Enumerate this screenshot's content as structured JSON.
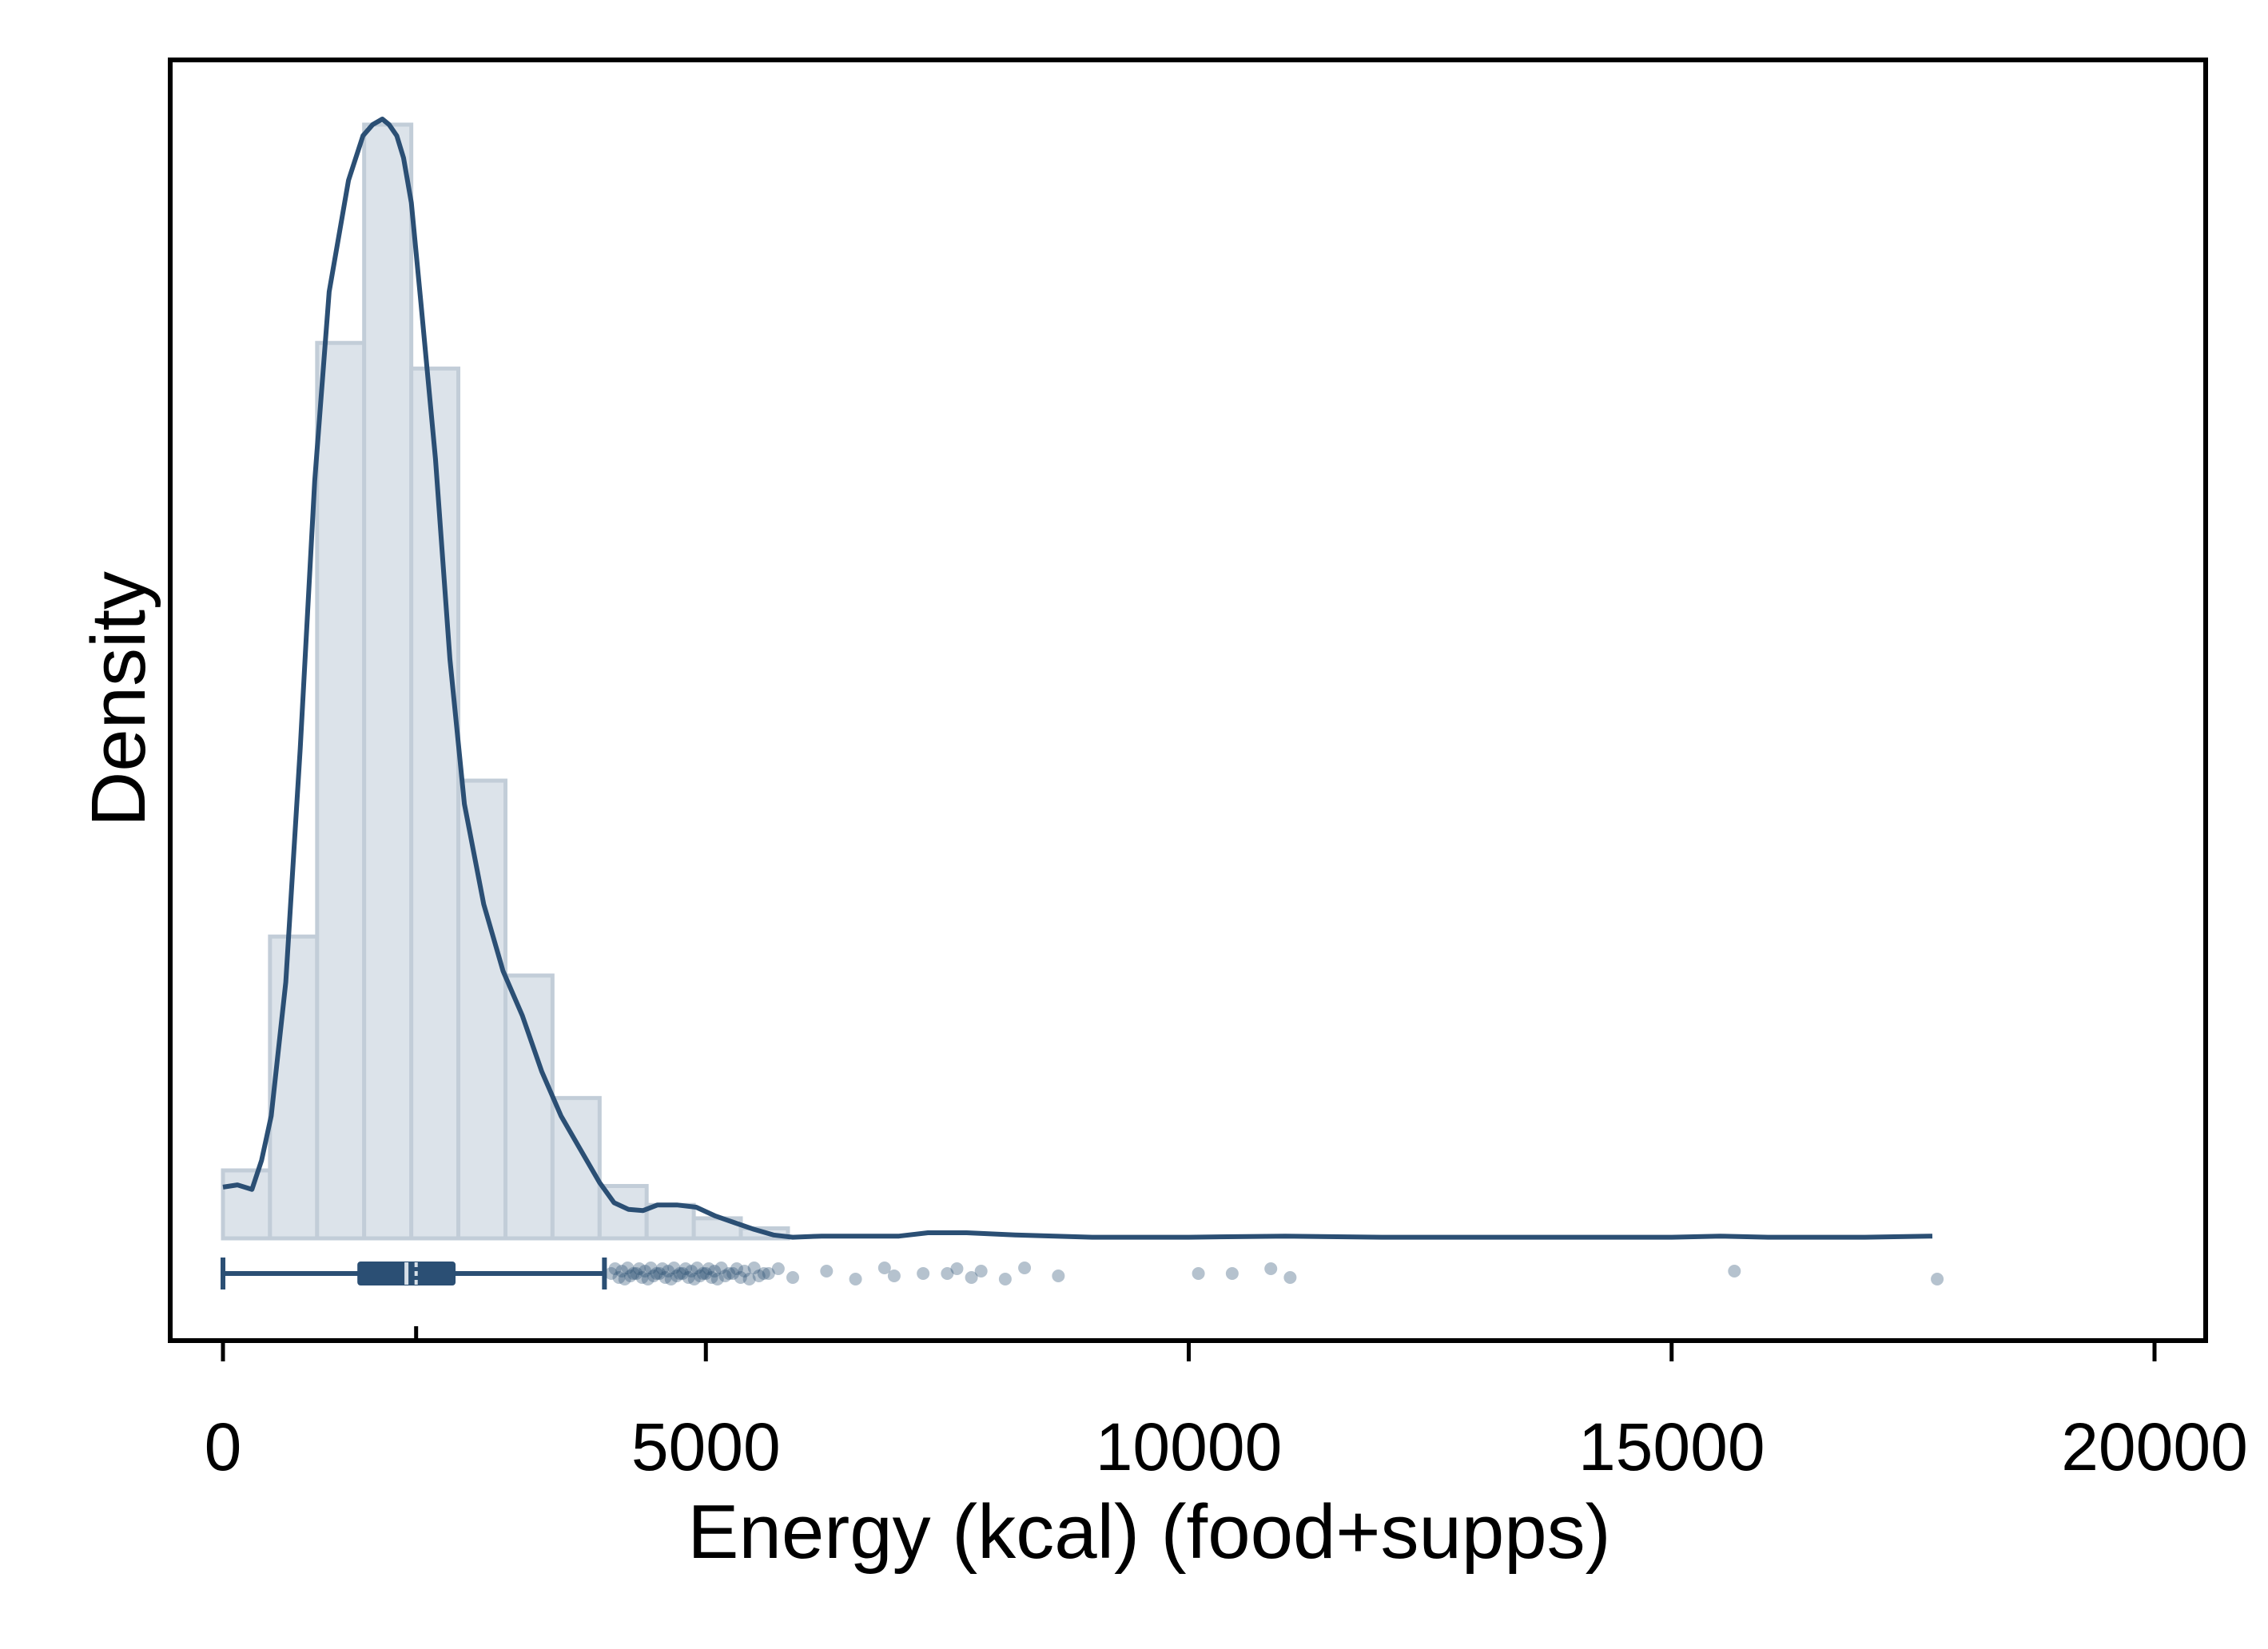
{
  "chart_data": {
    "type": "histogram",
    "title": "",
    "xlabel": "Energy (kcal) (food+supps)",
    "ylabel": "Density",
    "xlim": [
      -550,
      20550
    ],
    "x_ticks": [
      0,
      5000,
      10000,
      15000,
      20000
    ],
    "x_tick_labels": [
      "0",
      "5000",
      "10000",
      "15000",
      "20000"
    ],
    "y_ticks_shown": false,
    "grid": false,
    "colors": {
      "bar_fill": "#dce3ea",
      "bar_edge": "#c2cdd8",
      "line": "#2b4f74",
      "points": "#2b4f74"
    },
    "histogram": {
      "bin_width": 487,
      "bins": [
        {
          "x0": 0,
          "x1": 487,
          "rel_height": 0.061
        },
        {
          "x0": 487,
          "x1": 975,
          "rel_height": 0.271
        },
        {
          "x0": 975,
          "x1": 1462,
          "rel_height": 0.804
        },
        {
          "x0": 1462,
          "x1": 1950,
          "rel_height": 1.0
        },
        {
          "x0": 1950,
          "x1": 2437,
          "rel_height": 0.781
        },
        {
          "x0": 2437,
          "x1": 2925,
          "rel_height": 0.411
        },
        {
          "x0": 2925,
          "x1": 3412,
          "rel_height": 0.236
        },
        {
          "x0": 3412,
          "x1": 3900,
          "rel_height": 0.126
        },
        {
          "x0": 3900,
          "x1": 4387,
          "rel_height": 0.047
        },
        {
          "x0": 4387,
          "x1": 4875,
          "rel_height": 0.03
        },
        {
          "x0": 4875,
          "x1": 5362,
          "rel_height": 0.018
        },
        {
          "x0": 5362,
          "x1": 5850,
          "rel_height": 0.009
        }
      ]
    },
    "density_curve": {
      "x": [
        0,
        150,
        300,
        400,
        500,
        650,
        800,
        950,
        1100,
        1300,
        1450,
        1550,
        1650,
        1720,
        1800,
        1870,
        1950,
        2050,
        2200,
        2350,
        2500,
        2700,
        2900,
        3100,
        3300,
        3500,
        3700,
        3900,
        4050,
        4200,
        4350,
        4500,
        4700,
        4900,
        5100,
        5300,
        5500,
        5700,
        5900,
        6200,
        6600,
        7000,
        7300,
        7700,
        8200,
        9000,
        10000,
        11000,
        12000,
        13000,
        14000,
        15000,
        15500,
        16000,
        17000,
        17700
      ],
      "rel_y": [
        0.046,
        0.048,
        0.044,
        0.07,
        0.11,
        0.23,
        0.44,
        0.68,
        0.85,
        0.95,
        0.99,
        1.0,
        1.005,
        1.0,
        0.99,
        0.97,
        0.93,
        0.84,
        0.7,
        0.52,
        0.39,
        0.3,
        0.24,
        0.2,
        0.15,
        0.11,
        0.08,
        0.05,
        0.032,
        0.026,
        0.025,
        0.03,
        0.03,
        0.028,
        0.02,
        0.014,
        0.008,
        0.003,
        0.001,
        0.002,
        0.002,
        0.002,
        0.005,
        0.005,
        0.003,
        0.001,
        0.001,
        0.002,
        0.001,
        0.001,
        0.001,
        0.001,
        0.002,
        0.001,
        0.001,
        0.002
      ]
    },
    "boxplot": {
      "lower_whisker": 0,
      "q1": 1400,
      "median": 1900,
      "q3": 2400,
      "upper_whisker": 3950,
      "median_tick": 2000
    },
    "outliers": [
      4020,
      4060,
      4100,
      4130,
      4160,
      4190,
      4220,
      4250,
      4280,
      4310,
      4340,
      4370,
      4400,
      4430,
      4460,
      4490,
      4520,
      4550,
      4580,
      4610,
      4640,
      4670,
      4700,
      4730,
      4760,
      4790,
      4820,
      4850,
      4880,
      4910,
      4940,
      4970,
      5000,
      5030,
      5060,
      5090,
      5120,
      5160,
      5200,
      5240,
      5280,
      5320,
      5360,
      5400,
      5450,
      5500,
      5550,
      5600,
      5650,
      5750,
      5900,
      6250,
      6550,
      6850,
      6950,
      7250,
      7500,
      7600,
      7750,
      7850,
      8100,
      8300,
      8650,
      10100,
      10450,
      10850,
      11050,
      15650,
      17750
    ]
  }
}
